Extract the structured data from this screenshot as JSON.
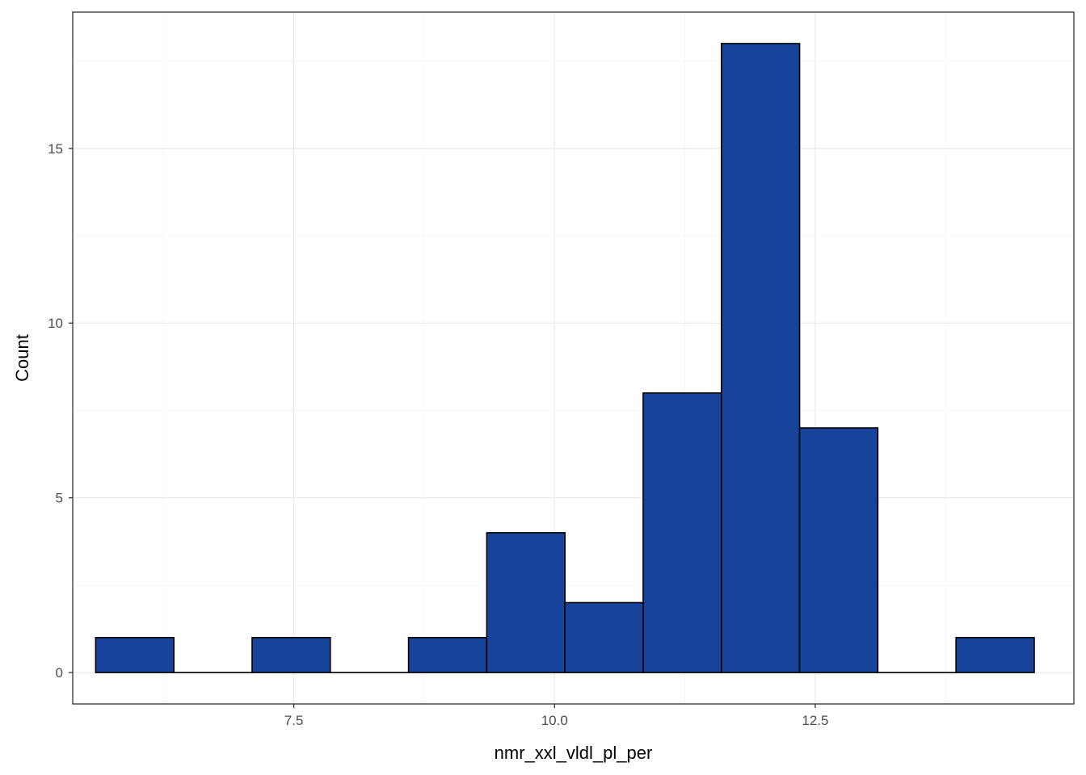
{
  "chart_data": {
    "type": "bar",
    "subtype": "histogram",
    "title": "",
    "xlabel": "nmr_xxl_vldl_pl_per",
    "ylabel": "Count",
    "xlim": [
      5.38,
      14.98
    ],
    "ylim": [
      -0.9,
      18.9
    ],
    "x_ticks": [
      7.5,
      10.0,
      12.5
    ],
    "x_tick_labels": [
      "7.5",
      "10.0",
      "12.5"
    ],
    "y_ticks": [
      0,
      5,
      10,
      15
    ],
    "y_tick_labels": [
      "0",
      "5",
      "10",
      "15"
    ],
    "grid": true,
    "legend": "none",
    "bin_width": 0.75,
    "bins": [
      {
        "x0": 5.6,
        "x1": 6.35,
        "count": 1
      },
      {
        "x0": 6.35,
        "x1": 7.1,
        "count": 0
      },
      {
        "x0": 7.1,
        "x1": 7.85,
        "count": 1
      },
      {
        "x0": 7.85,
        "x1": 8.6,
        "count": 0
      },
      {
        "x0": 8.6,
        "x1": 9.35,
        "count": 1
      },
      {
        "x0": 9.35,
        "x1": 10.1,
        "count": 4
      },
      {
        "x0": 10.1,
        "x1": 10.85,
        "count": 2
      },
      {
        "x0": 10.85,
        "x1": 11.6,
        "count": 8
      },
      {
        "x0": 11.6,
        "x1": 12.35,
        "count": 18
      },
      {
        "x0": 12.35,
        "x1": 13.1,
        "count": 7
      },
      {
        "x0": 13.1,
        "x1": 13.85,
        "count": 0
      },
      {
        "x0": 13.85,
        "x1": 14.6,
        "count": 1
      }
    ],
    "colors": {
      "bar_fill": "#17449a",
      "bar_stroke": "#000000",
      "panel_border": "#333333",
      "grid_major": "#ebebeb",
      "grid_minor": "#f5f5f5"
    }
  }
}
